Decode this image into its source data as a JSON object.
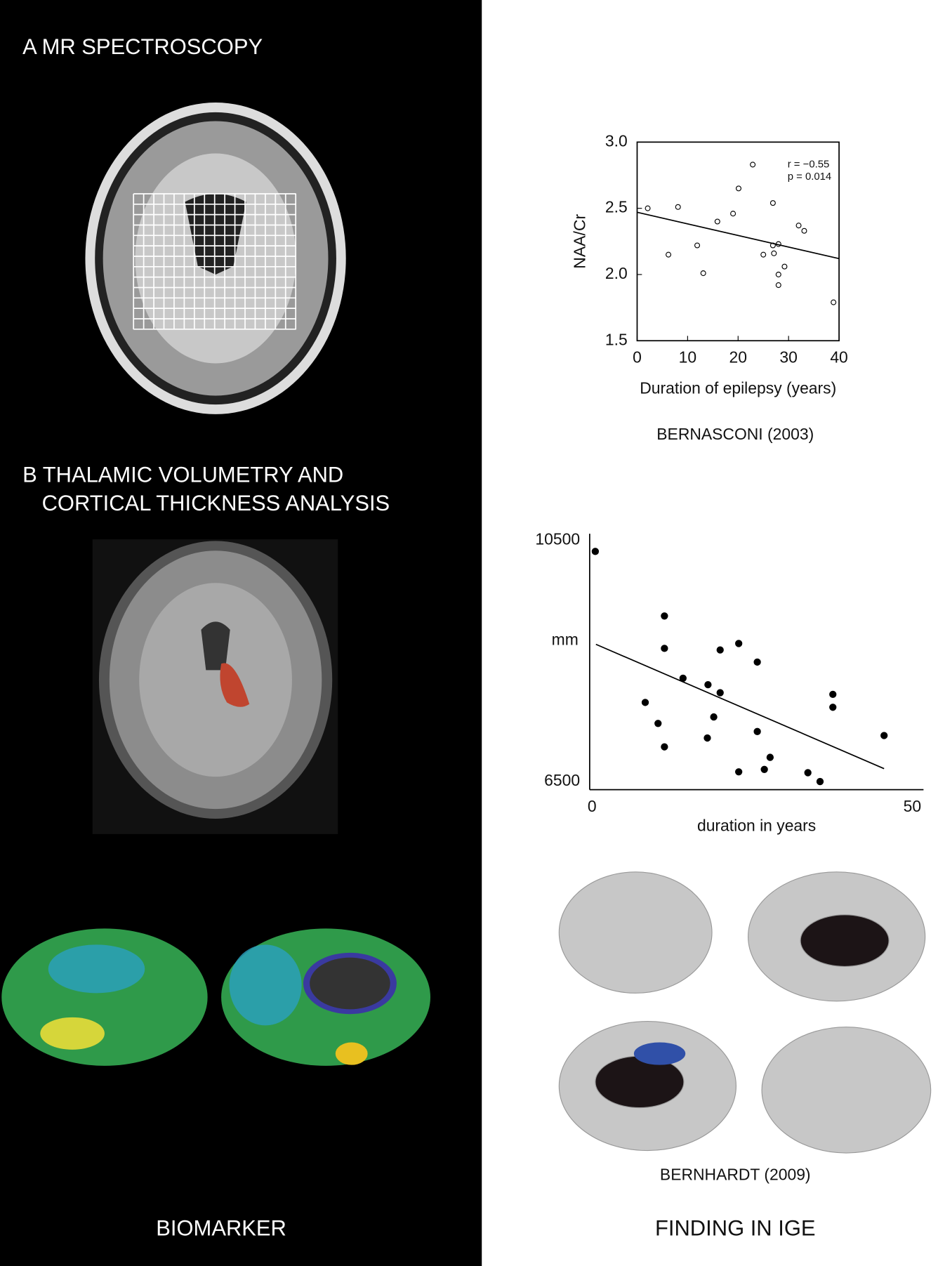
{
  "labels": {
    "panel_a": "A MR SPECTROSCOPY",
    "panel_b_line1": "B THALAMIC VOLUMETRY AND",
    "panel_b_line2": "CORTICAL THICKNESS ANALYSIS",
    "left_footer": "BIOMARKER",
    "right_footer": "FINDING IN IGE",
    "source_a": "BERNASCONI (2003)",
    "source_b": "BERNHARDT (2009)"
  },
  "chart_data": [
    {
      "type": "scatter",
      "x_label": "Duration of epilepsy (years)",
      "y_label": "NAA/Cr",
      "annotations": [
        "r = −0.55",
        "p = 0.014"
      ],
      "x": [
        2.1,
        6.2,
        8.1,
        11.9,
        13.1,
        15.9,
        19.0,
        20.1,
        22.9,
        25.0,
        26.9,
        26.9,
        27.1,
        28.0,
        28.0,
        28.0,
        29.2,
        32.0,
        33.1,
        38.9
      ],
      "values": [
        2.5,
        2.15,
        2.51,
        2.22,
        2.01,
        2.4,
        2.46,
        2.65,
        2.83,
        2.15,
        2.54,
        2.22,
        2.16,
        2.23,
        2.0,
        1.92,
        2.06,
        2.37,
        2.33,
        1.79
      ],
      "trend_x": [
        0,
        40
      ],
      "trend_y": [
        2.47,
        2.12
      ],
      "color": "#000",
      "filled": false,
      "frame": true,
      "xlim": [
        0,
        40
      ],
      "ylim": [
        1.5,
        3.0
      ],
      "xticks": [
        0,
        10,
        20,
        30,
        40
      ],
      "yticks": [
        1.5,
        {
          "value": 2.0,
          "label": "2.0"
        },
        2.5,
        {
          "value": 3.0,
          "label": "3.0"
        }
      ]
    },
    {
      "type": "scatter",
      "x_label": "duration in years",
      "y_label": "mm",
      "x": [
        0.5,
        11.3,
        11.3,
        14.2,
        8.3,
        18.1,
        20.0,
        20.0,
        22.9,
        25.8,
        10.3,
        11.3,
        19.0,
        18.0,
        25.8,
        22.9,
        26.9,
        27.8,
        33.7,
        35.6,
        37.6,
        37.6,
        45.6
      ],
      "values": [
        10313,
        9243,
        8707,
        8212,
        7811,
        8105,
        8681,
        7972,
        8788,
        8480,
        7463,
        7075,
        7570,
        7222,
        7329,
        6661,
        6701,
        6901,
        6647,
        6500,
        7945,
        7731,
        7263
      ],
      "trend_x": [
        0.6,
        45.6
      ],
      "trend_y": [
        8774,
        6714
      ],
      "color": "#000",
      "filled": true,
      "frame": false,
      "xlim": [
        0,
        50
      ],
      "ylim": [
        6500,
        10500
      ],
      "xticks": [
        0,
        50
      ],
      "yticks": [
        6500,
        10500
      ]
    }
  ]
}
